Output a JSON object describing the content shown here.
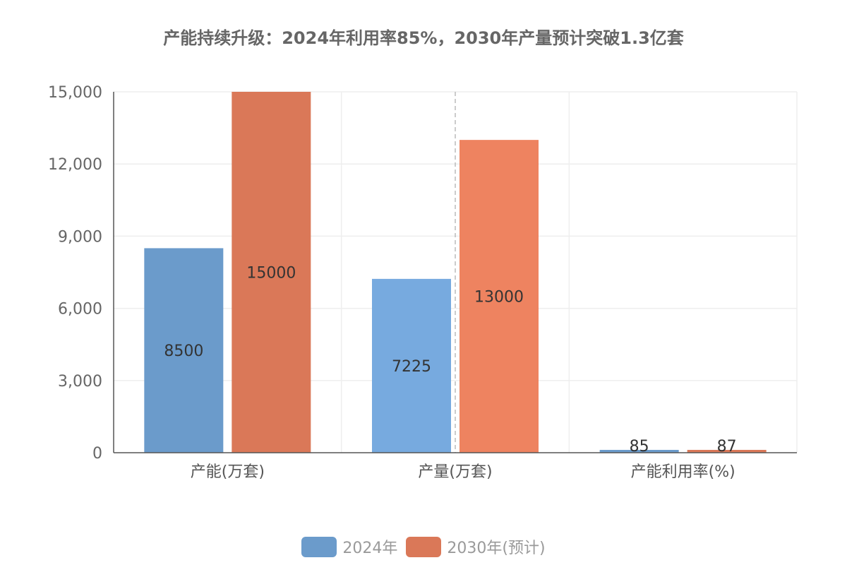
{
  "chart_data": {
    "type": "bar",
    "title": "产能持续升级：2024年利用率85%，2030年产量预计突破1.3亿套",
    "categories": [
      "产能(万套)",
      "产量(万套)",
      "产能利用率(%)"
    ],
    "series": [
      {
        "name": "2024年",
        "values": [
          8500,
          7225,
          85
        ],
        "colors": [
          "#6b9bcb",
          "#77aadf",
          "#6b9bcb"
        ]
      },
      {
        "name": "2030年(预计)",
        "values": [
          15000,
          13000,
          87
        ],
        "colors": [
          "#da7858",
          "#ee8360",
          "#da7858"
        ]
      }
    ],
    "yticks": [
      "0",
      "3,000",
      "6,000",
      "9,000",
      "12,000",
      "15,000"
    ],
    "ylim": [
      0,
      15000
    ],
    "xlabel": "",
    "ylabel": "",
    "grid": true,
    "legend_position": "bottom-center",
    "colors": {
      "series_2024": "#6b9bcb",
      "series_2030": "#da7858",
      "grid": "#eeeeee",
      "axis": "#555555"
    }
  }
}
